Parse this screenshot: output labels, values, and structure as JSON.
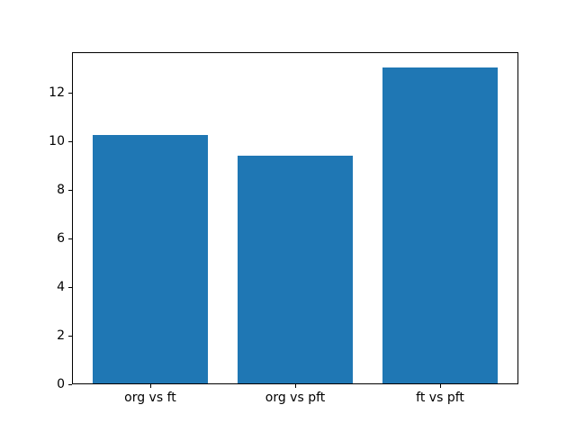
{
  "figure": {
    "background": "#ffffff",
    "spine_color": "#000000",
    "text_color": "#000000"
  },
  "chart_data": {
    "type": "bar",
    "title": "",
    "xlabel": "",
    "ylabel": "",
    "categories": [
      "org vs ft",
      "org vs pft",
      "ft vs pft"
    ],
    "values": [
      10.2,
      9.35,
      13.0
    ],
    "bar_color": "#1f77b4",
    "bar_width_fraction": 0.8,
    "ylim": [
      0,
      13.65
    ],
    "yticks": [
      0,
      2,
      4,
      6,
      8,
      10,
      12
    ],
    "grid": false,
    "legend": false
  }
}
